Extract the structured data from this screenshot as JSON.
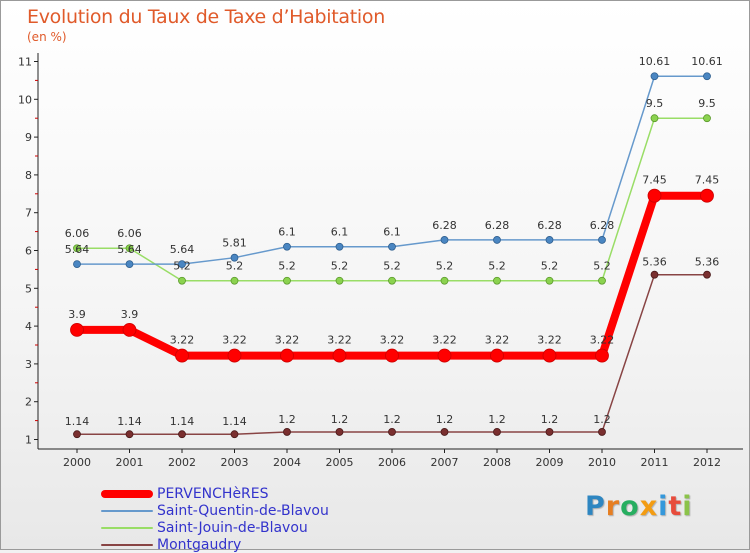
{
  "header": {
    "title": "Evolution du Taux de Taxe d’Habitation",
    "subtitle": "(en %)"
  },
  "brand": {
    "letters": [
      "P",
      "r",
      "o",
      "x",
      "i",
      "t",
      "i"
    ],
    "colors": [
      "#2e86c1",
      "#e67e22",
      "#27ae60",
      "#f39c12",
      "#3498db",
      "#e74c3c",
      "#8bc34a"
    ]
  },
  "chart_data": {
    "type": "line",
    "x": [
      "2000",
      "2001",
      "2002",
      "2003",
      "2004",
      "2005",
      "2006",
      "2007",
      "2008",
      "2009",
      "2010",
      "2011",
      "2012"
    ],
    "ylim": [
      1,
      11
    ],
    "yticks": [
      "1",
      "2",
      "3",
      "4",
      "5",
      "6",
      "7",
      "8",
      "9",
      "10",
      "11"
    ],
    "grid": false,
    "legend_position": "bottom-left",
    "series": [
      {
        "name": "PERVENCHèRES",
        "color": "#ff0000",
        "values": [
          3.9,
          3.9,
          3.22,
          3.22,
          3.22,
          3.22,
          3.22,
          3.22,
          3.22,
          3.22,
          3.22,
          7.45,
          7.45
        ],
        "labels": [
          "3.9",
          "3.9",
          "3.22",
          "3.22",
          "3.22",
          "3.22",
          "3.22",
          "3.22",
          "3.22",
          "3.22",
          "3.22",
          "7.45",
          "7.45"
        ]
      },
      {
        "name": "Saint-Quentin-de-Blavou",
        "color": "#6699cc",
        "values": [
          5.64,
          5.64,
          5.64,
          5.81,
          6.1,
          6.1,
          6.1,
          6.28,
          6.28,
          6.28,
          6.28,
          10.61,
          10.61
        ],
        "labels": [
          "5.64",
          "5.64",
          "5.64",
          "5.81",
          "6.1",
          "6.1",
          "6.1",
          "6.28",
          "6.28",
          "6.28",
          "6.28",
          "10.61",
          "10.61"
        ]
      },
      {
        "name": "Saint-Jouin-de-Blavou",
        "color": "#99dd66",
        "values": [
          6.06,
          6.06,
          5.2,
          5.2,
          5.2,
          5.2,
          5.2,
          5.2,
          5.2,
          5.2,
          5.2,
          9.5,
          9.5
        ],
        "labels": [
          "6.06",
          "6.06",
          "5.2",
          "5.2",
          "5.2",
          "5.2",
          "5.2",
          "5.2",
          "5.2",
          "5.2",
          "5.2",
          "9.5",
          "9.5"
        ]
      },
      {
        "name": "Montgaudry",
        "color": "#884444",
        "values": [
          1.14,
          1.14,
          1.14,
          1.14,
          1.2,
          1.2,
          1.2,
          1.2,
          1.2,
          1.2,
          1.2,
          5.36,
          5.36
        ],
        "labels": [
          "1.14",
          "1.14",
          "1.14",
          "1.14",
          "1.2",
          "1.2",
          "1.2",
          "1.2",
          "1.2",
          "1.2",
          "1.2",
          "5.36",
          "5.36"
        ]
      }
    ]
  }
}
